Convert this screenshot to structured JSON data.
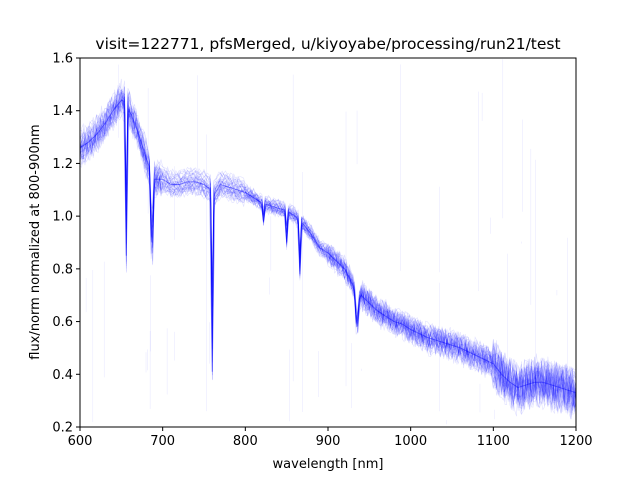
{
  "chart_data": {
    "type": "line",
    "title": "visit=122771, pfsMerged, u/kiyoyabe/processing/run21/test",
    "xlabel": "wavelength [nm]",
    "ylabel": "flux/norm normalized at 800-900nm",
    "xlim": [
      600,
      1200
    ],
    "ylim": [
      0.2,
      1.6
    ],
    "x_ticks": [
      "600",
      "700",
      "800",
      "900",
      "1000",
      "1100",
      "1200"
    ],
    "y_ticks": [
      "0.2",
      "0.4",
      "0.6",
      "0.8",
      "1.0",
      "1.2",
      "1.4",
      "1.6"
    ],
    "grid": false,
    "line_color": "#0000ff",
    "series_profile": {
      "x": [
        600,
        610,
        620,
        630,
        640,
        650,
        656,
        660,
        670,
        680,
        686,
        690,
        700,
        710,
        720,
        730,
        740,
        750,
        758,
        762,
        766,
        770,
        780,
        790,
        800,
        810,
        820,
        830,
        840,
        850,
        860,
        870,
        880,
        890,
        900,
        910,
        920,
        930,
        935,
        940,
        950,
        960,
        970,
        980,
        990,
        1000,
        1020,
        1040,
        1060,
        1080,
        1100,
        1110,
        1120,
        1130,
        1140,
        1150,
        1160,
        1170,
        1180,
        1190,
        1200
      ],
      "y": [
        1.26,
        1.28,
        1.31,
        1.35,
        1.4,
        1.44,
        1.43,
        1.4,
        1.32,
        1.22,
        1.17,
        1.14,
        1.14,
        1.12,
        1.12,
        1.13,
        1.13,
        1.12,
        1.1,
        1.08,
        1.1,
        1.12,
        1.11,
        1.1,
        1.09,
        1.07,
        1.05,
        1.04,
        1.03,
        1.02,
        1.0,
        0.97,
        0.93,
        0.88,
        0.86,
        0.83,
        0.8,
        0.74,
        0.66,
        0.7,
        0.67,
        0.64,
        0.62,
        0.6,
        0.59,
        0.57,
        0.54,
        0.52,
        0.5,
        0.47,
        0.44,
        0.4,
        0.37,
        0.35,
        0.36,
        0.37,
        0.37,
        0.36,
        0.35,
        0.34,
        0.33
      ]
    },
    "absorption_features": [
      {
        "x": 656,
        "y": 0.85
      },
      {
        "x": 687,
        "y": 0.9
      },
      {
        "x": 760,
        "y": 0.41
      },
      {
        "x": 822,
        "y": 0.98
      },
      {
        "x": 850,
        "y": 0.9
      },
      {
        "x": 866,
        "y": 0.78
      },
      {
        "x": 935,
        "y": 0.58
      }
    ],
    "num_traces": 40
  }
}
